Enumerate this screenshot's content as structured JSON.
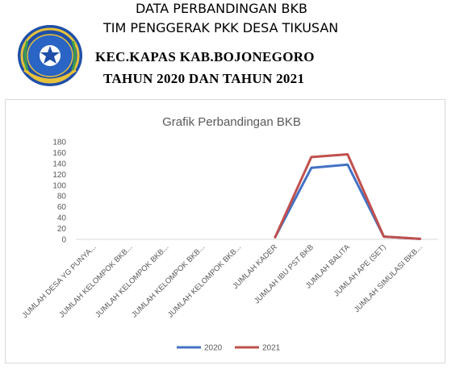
{
  "header": {
    "line1": "DATA PERBANDINGAN BKB",
    "line2": "TIM PENGGERAK PKK DESA TIKUSAN",
    "line3": "KEC.KAPAS KAB.BOJONEGORO",
    "line4": "TAHUN  2020 DAN TAHUN 2021"
  },
  "logo": {
    "icon": "regency-emblem-icon"
  },
  "chart_data": {
    "type": "line",
    "title": "Grafik Perbandingan BKB",
    "categories": [
      "JUMLAH DESA YG PUNYA...",
      "JUMLAH KELOMPOK BKB...",
      "JUMLAH KELOMPOK BKB...",
      "JUMLAH KELOMPOK BKB...",
      "JUMLAH KELOMPOK BKB...",
      "JUMLAH KADER",
      "JUMLAH IBU PST BKB",
      "JUMLAH BALITA",
      "JUMLAH APE (SET)",
      "JUMLAH SIMULASI BKB..."
    ],
    "series": [
      {
        "name": "2020",
        "color": "#4472c4",
        "values": [
          null,
          null,
          null,
          null,
          null,
          4,
          132,
          138,
          5,
          1
        ]
      },
      {
        "name": "2021",
        "color": "#c0504d",
        "values": [
          null,
          null,
          null,
          null,
          null,
          4,
          152,
          157,
          5,
          1
        ]
      }
    ],
    "yticks": [
      "0",
      "20",
      "40",
      "60",
      "80",
      "100",
      "120",
      "140",
      "160",
      "180"
    ],
    "ylim": [
      0,
      180
    ],
    "grid": false,
    "legend": "bottom"
  }
}
